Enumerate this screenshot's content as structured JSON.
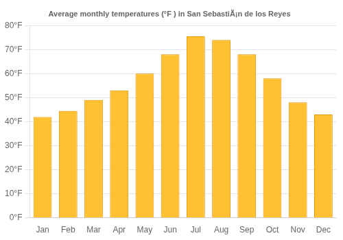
{
  "chart_data": {
    "type": "bar",
    "title": "Average monthly temperatures (°F ) in San SebastiÃ¡n de los Reyes",
    "categories": [
      "Jan",
      "Feb",
      "Mar",
      "Apr",
      "May",
      "Jun",
      "Jul",
      "Aug",
      "Sep",
      "Oct",
      "Nov",
      "Dec"
    ],
    "values": [
      42,
      44.5,
      49,
      53,
      60,
      68,
      75.5,
      74,
      68,
      58,
      48,
      43
    ],
    "color": "#FFC132",
    "ylim": [
      0,
      80
    ],
    "yticks": [
      {
        "value": 0,
        "label": "0°F"
      },
      {
        "value": 10,
        "label": "10°F"
      },
      {
        "value": 20,
        "label": "20°F"
      },
      {
        "value": 30,
        "label": "30°F"
      },
      {
        "value": 40,
        "label": "40°F"
      },
      {
        "value": 50,
        "label": "50°F"
      },
      {
        "value": 60,
        "label": "60°F"
      },
      {
        "value": 70,
        "label": "70°F"
      },
      {
        "value": 80,
        "label": "80°F"
      }
    ],
    "grid": true
  }
}
